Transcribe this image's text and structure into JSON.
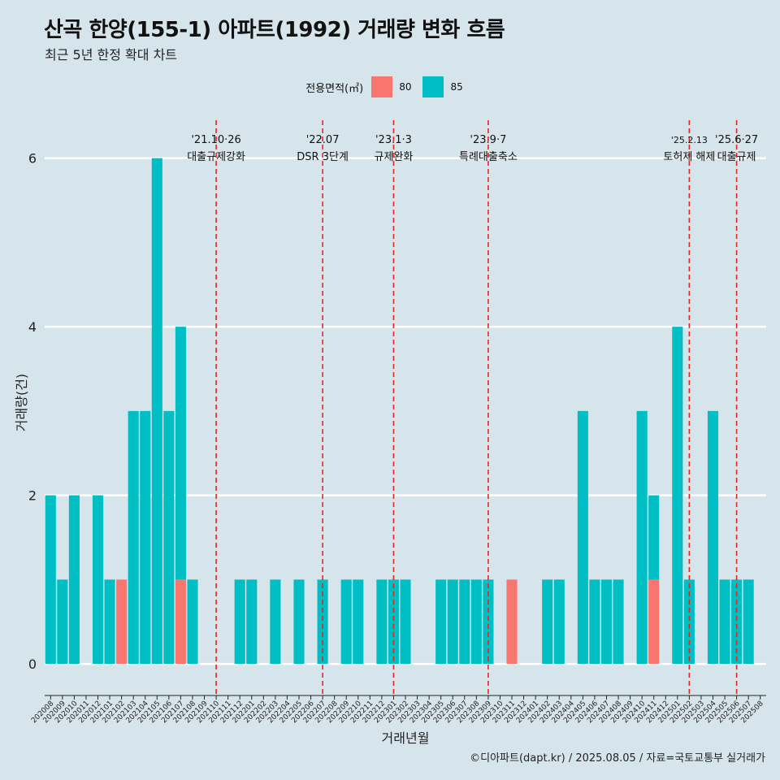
{
  "title": "산곡 한양(155-1) 아파트(1992) 거래량 변화 흐름",
  "subtitle": "최근 5년 한정 확대 차트",
  "caption": "©디아파트(dapt.kr) / 2025.08.05 / 자료=국토교통부 실거래가",
  "legend": {
    "title": "전용면적(㎡)",
    "items": [
      {
        "label": "80",
        "color": "#f8766d"
      },
      {
        "label": "85",
        "color": "#00bfc4"
      }
    ]
  },
  "chart_data": {
    "type": "bar",
    "stacked": true,
    "xlabel": "거래년월",
    "ylabel": "거래량(건)",
    "ylim": [
      -0.25,
      6.45
    ],
    "yticks": [
      0,
      2,
      4,
      6
    ],
    "categories": [
      "202008",
      "202009",
      "202010",
      "202011",
      "202012",
      "202101",
      "202102",
      "202103",
      "202104",
      "202105",
      "202106",
      "202107",
      "202108",
      "202109",
      "202110",
      "202111",
      "202112",
      "202201",
      "202202",
      "202203",
      "202204",
      "202205",
      "202206",
      "202207",
      "202208",
      "202209",
      "202210",
      "202211",
      "202212",
      "202301",
      "202302",
      "202303",
      "202304",
      "202305",
      "202306",
      "202307",
      "202308",
      "202309",
      "202310",
      "202311",
      "202312",
      "202401",
      "202402",
      "202403",
      "202404",
      "202405",
      "202406",
      "202407",
      "202408",
      "202409",
      "202410",
      "202411",
      "202412",
      "202501",
      "202502",
      "202503",
      "202504",
      "202505",
      "202506",
      "202507",
      "202508"
    ],
    "series": [
      {
        "name": "80",
        "color": "#f8766d",
        "values": [
          0,
          0,
          0,
          0,
          0,
          0,
          1,
          0,
          0,
          0,
          0,
          1,
          0,
          0,
          0,
          0,
          0,
          0,
          0,
          0,
          0,
          0,
          0,
          0,
          0,
          0,
          0,
          0,
          0,
          0,
          0,
          0,
          0,
          0,
          0,
          0,
          0,
          0,
          0,
          1,
          0,
          0,
          0,
          0,
          0,
          0,
          0,
          0,
          0,
          0,
          0,
          1,
          0,
          0,
          0,
          0,
          0,
          0,
          0,
          0,
          0
        ]
      },
      {
        "name": "85",
        "color": "#00bfc4",
        "values": [
          2,
          1,
          2,
          0,
          2,
          1,
          0,
          3,
          3,
          6,
          3,
          3,
          1,
          0,
          0,
          0,
          1,
          1,
          0,
          1,
          0,
          1,
          0,
          1,
          0,
          1,
          1,
          0,
          1,
          1,
          1,
          0,
          0,
          1,
          1,
          1,
          1,
          1,
          0,
          0,
          0,
          0,
          1,
          1,
          0,
          3,
          1,
          1,
          1,
          0,
          3,
          1,
          0,
          4,
          1,
          0,
          3,
          1,
          1,
          1,
          0
        ]
      }
    ],
    "annotations": [
      {
        "x": "202110",
        "date": "'21.10·26",
        "label": "대출규제강화"
      },
      {
        "x": "202207",
        "date": "'22.07",
        "label": "DSR 3단계"
      },
      {
        "x": "202301",
        "date": "'23.1·3",
        "label": "규제완화"
      },
      {
        "x": "202309",
        "date": "'23.9·7",
        "label": "특례대출축소"
      },
      {
        "x": "202502",
        "date": "'25.2.13",
        "label": "토허제 해제"
      },
      {
        "x": "202506",
        "date": "'25.6·27",
        "label": "대출규제"
      }
    ],
    "grid": "horizontal-major",
    "legend_position": "top"
  }
}
